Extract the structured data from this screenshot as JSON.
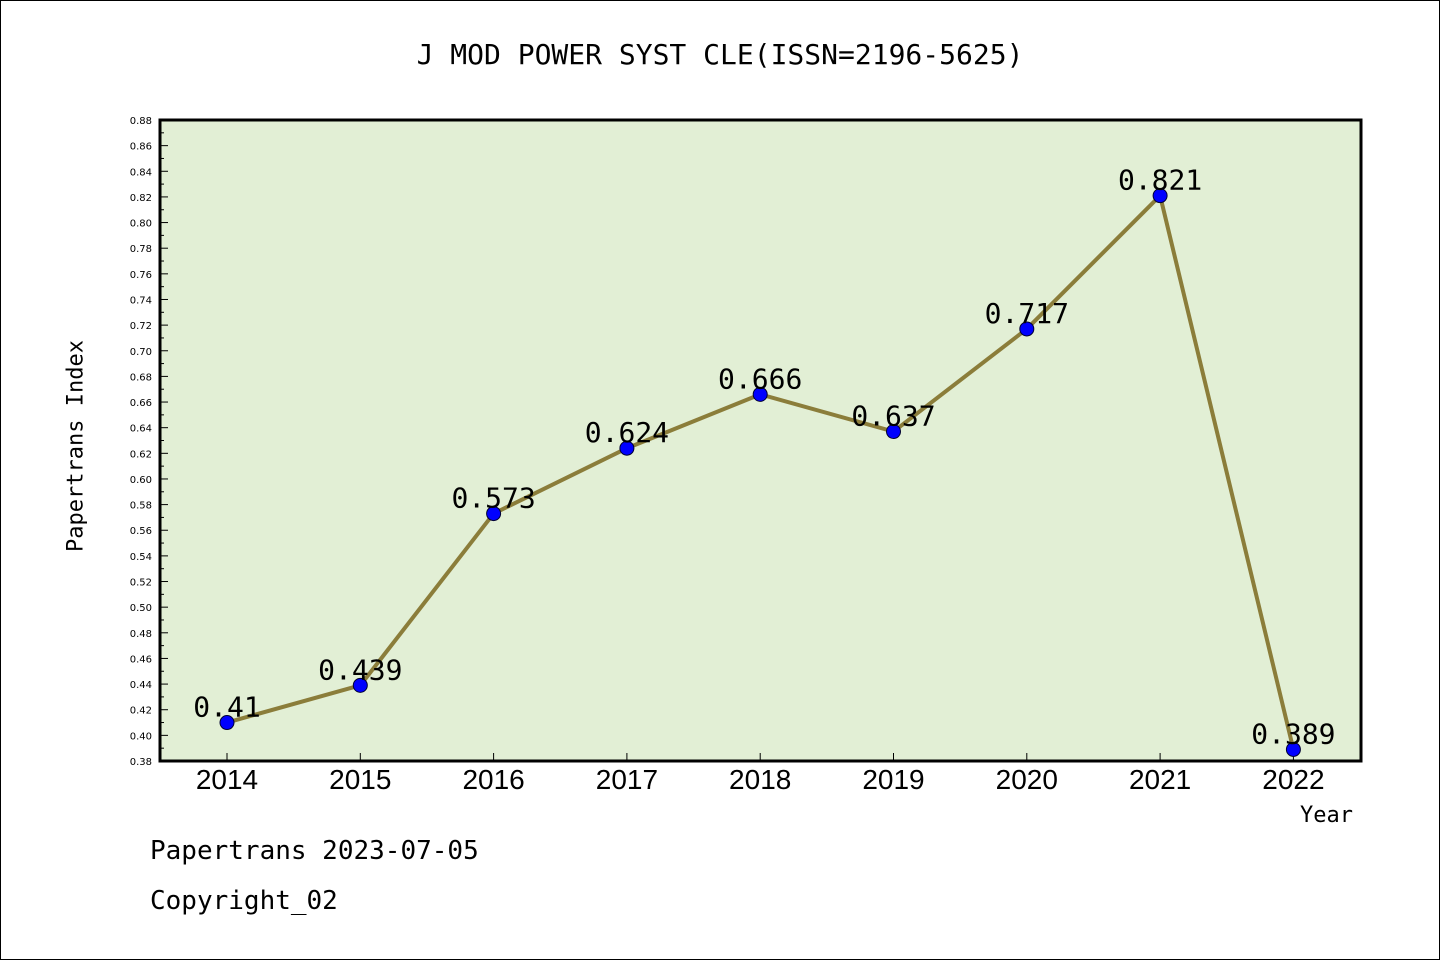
{
  "footer": {
    "line1": "Papertrans 2023-07-05",
    "line2": "Copyright_02"
  },
  "chart_data": {
    "type": "line",
    "title": "J MOD POWER SYST CLE(ISSN=2196-5625)",
    "xlabel": "Year",
    "ylabel": "Papertrans Index",
    "categories": [
      "2014",
      "2015",
      "2016",
      "2017",
      "2018",
      "2019",
      "2020",
      "2021",
      "2022"
    ],
    "series": [
      {
        "values": [
          0.41,
          0.439,
          0.573,
          0.624,
          0.666,
          0.637,
          0.717,
          0.821,
          0.389
        ],
        "labels": [
          "0.41",
          "0.439",
          "0.573",
          "0.624",
          "0.666",
          "0.637",
          "0.717",
          "0.821",
          "0.389"
        ],
        "line_color": "#8B7D3A",
        "marker_color": "#0000FF"
      }
    ],
    "ylim": [
      0.38,
      0.88
    ],
    "ytick_step": 0.02,
    "plot_background": "#E2EFD5",
    "grid": false,
    "legend": "none"
  }
}
